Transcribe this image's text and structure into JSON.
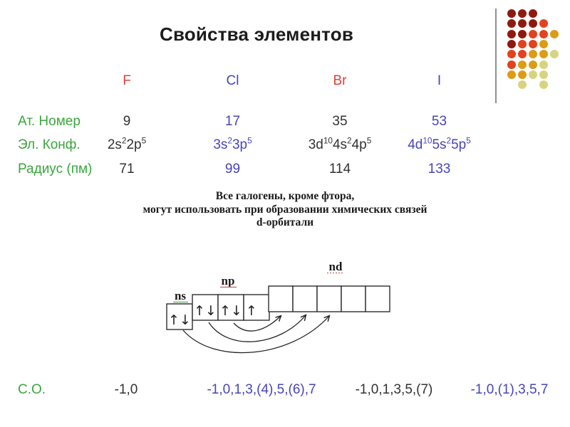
{
  "title": "Свойства элементов",
  "colors": {
    "red": "#d8423c",
    "green": "#3aa63e",
    "blue": "#4744b8",
    "black": "#323232",
    "squiggle_green": "#7fae7f",
    "squiggle_red": "#cc7272"
  },
  "table": {
    "columns": [
      "F",
      "Cl",
      "Br",
      "I"
    ],
    "rows": [
      {
        "label": "Ат. Номер",
        "values": [
          "9",
          "17",
          "35",
          "53"
        ]
      },
      {
        "label": "Эл. Конф.",
        "configs": [
          [
            [
              "2s",
              "2"
            ],
            [
              "2p",
              "5"
            ]
          ],
          [
            [
              "3s",
              "2"
            ],
            [
              "3p",
              "5"
            ]
          ],
          [
            [
              "3d",
              "10"
            ],
            [
              "4s",
              "2"
            ],
            [
              "4p",
              "5"
            ]
          ],
          [
            [
              "4d",
              "10"
            ],
            [
              "5s",
              "2"
            ],
            [
              "5p",
              "5"
            ]
          ]
        ]
      },
      {
        "label": "Радиус (пм)",
        "values": [
          "71",
          "99",
          "114",
          "133"
        ]
      }
    ]
  },
  "note": {
    "lines": [
      "Все галогены, кроме фтора,",
      "могут использовать при образовании химических связей",
      "d-орбитали"
    ]
  },
  "diagram": {
    "labels": {
      "ns": "ns",
      "np": "np",
      "nd": "nd"
    },
    "ns_spins": "↑↓",
    "np_spins": [
      "↑↓",
      "↑↓",
      "↑"
    ],
    "nd_box_count": 5
  },
  "oxidation": {
    "label": "С.О.",
    "values": [
      {
        "text": "-1,0",
        "color": "black"
      },
      {
        "text": "-1,0,1,3,(4),5,(6),7",
        "color": "blue"
      },
      {
        "text": "-1,0,1,3,5,(7)",
        "color": "black"
      },
      {
        "text": "-1,0,(1),3,5,7",
        "color": "blue"
      }
    ]
  },
  "decoration": {
    "dot_colors": {
      "1": "#8e1a0f",
      "2": "#e2421e",
      "3": "#dc9c16",
      "4": "#d6d480"
    },
    "dot_rows": [
      "111",
      "1112",
      "11223",
      "1223",
      "22334",
      "2334",
      "3344",
      ".4.4"
    ]
  }
}
